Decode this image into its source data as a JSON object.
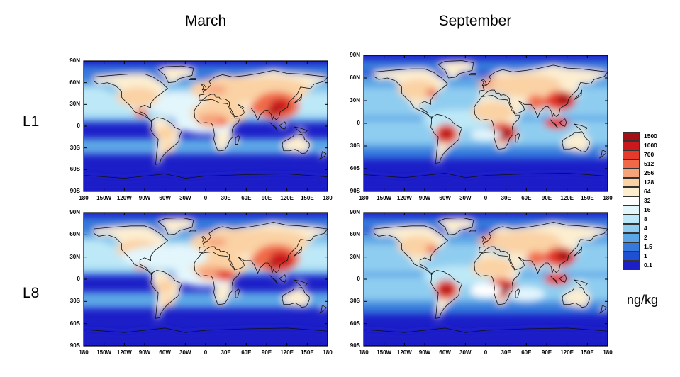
{
  "columns": {
    "left_title": "March",
    "right_title": "September"
  },
  "rows": {
    "top_label": "L1",
    "bottom_label": "L8"
  },
  "lat_ticks": [
    "90N",
    "60N",
    "30N",
    "0",
    "30S",
    "60S",
    "90S"
  ],
  "lon_ticks": [
    "180",
    "150W",
    "120W",
    "90W",
    "60W",
    "30W",
    "0",
    "30E",
    "60E",
    "90E",
    "120E",
    "150E",
    "180"
  ],
  "legend": {
    "levels": [
      "1500",
      "1000",
      "700",
      "512",
      "256",
      "128",
      "64",
      "32",
      "16",
      "8",
      "4",
      "2",
      "1.5",
      "1",
      "0.1"
    ],
    "colors": [
      "#a50f15",
      "#cb181d",
      "#e63a2b",
      "#f06a4a",
      "#f6a27b",
      "#fad2a4",
      "#fdeed0",
      "#ffffff",
      "#e3f6fc",
      "#bde8f7",
      "#8fcdf0",
      "#5ba6e6",
      "#3679dc",
      "#1f4fd3",
      "#1c1fc8"
    ],
    "unit": "ng/kg"
  },
  "panels": [
    {
      "id": "l1-march",
      "season": "March",
      "level": "L1"
    },
    {
      "id": "l1-september",
      "season": "September",
      "level": "L1"
    },
    {
      "id": "l8-march",
      "season": "March",
      "level": "L8"
    },
    {
      "id": "l8-september",
      "season": "September",
      "level": "L8"
    }
  ],
  "colors": {
    "ocean": "#1c1fc8",
    "coast": "#111111"
  }
}
